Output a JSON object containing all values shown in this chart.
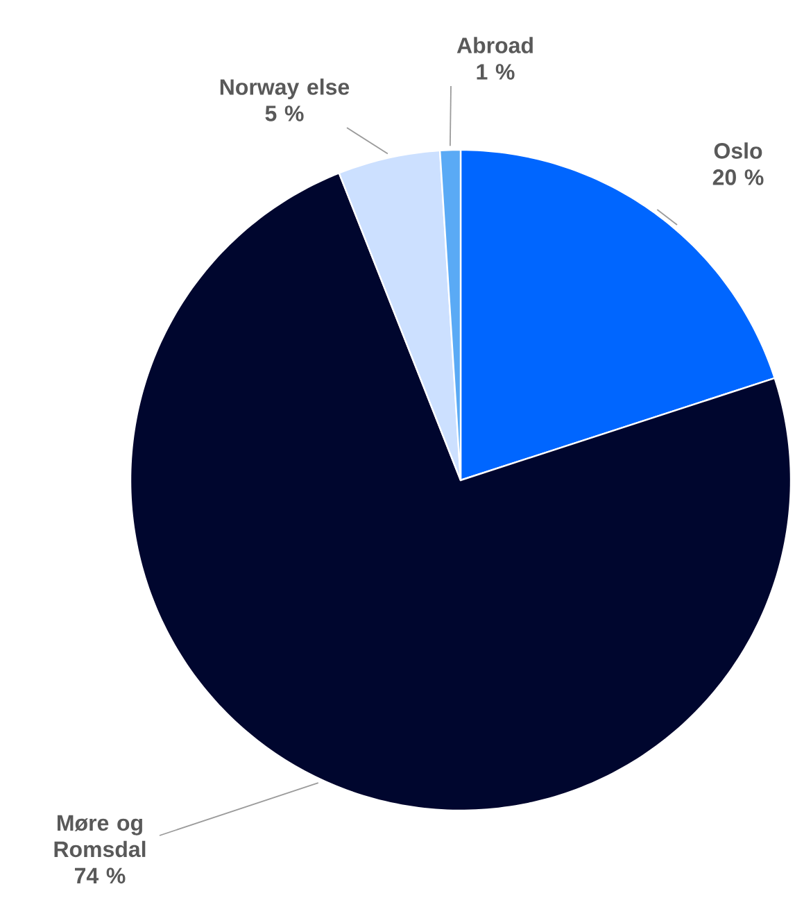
{
  "chart_data": {
    "type": "pie",
    "categories": [
      "Oslo",
      "Møre og Romsdal",
      "Norway else",
      "Abroad"
    ],
    "values": [
      20,
      74,
      5,
      1
    ],
    "value_labels": [
      "20 %",
      "74 %",
      "5 %",
      "1 %"
    ],
    "colors": [
      "#0066ff",
      "#00062e",
      "#cce0ff",
      "#5aaaf5"
    ]
  }
}
